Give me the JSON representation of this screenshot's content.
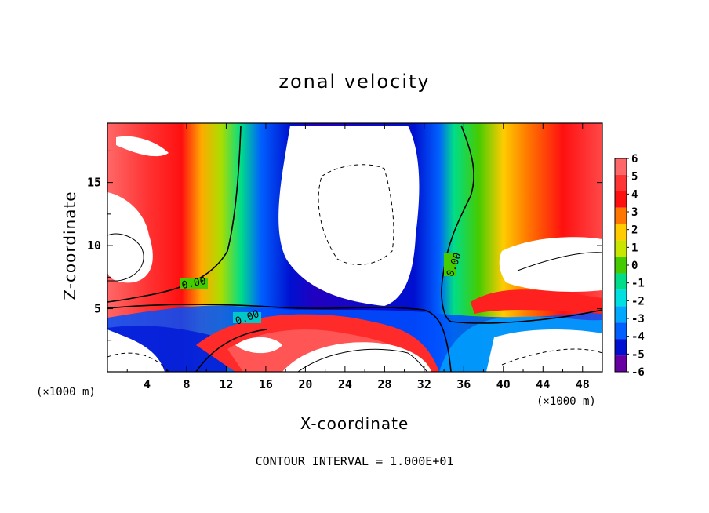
{
  "chart_data": {
    "type": "heatmap",
    "title": "zonal velocity",
    "xlabel": "X-coordinate",
    "ylabel": "Z-coordinate",
    "x_unit_left": "(×1000 m)",
    "x_unit_right": "(×1000 m)",
    "xlim": [
      0,
      50
    ],
    "ylim": [
      0,
      19.7
    ],
    "xticks": [
      "4",
      "8",
      "12",
      "16",
      "20",
      "24",
      "28",
      "32",
      "36",
      "40",
      "44",
      "48"
    ],
    "xtick_values": [
      4,
      8,
      12,
      16,
      20,
      24,
      28,
      32,
      36,
      40,
      44,
      48
    ],
    "yticks": [
      "5",
      "10",
      "15"
    ],
    "ytick_values": [
      5,
      10,
      15
    ],
    "colorbar": {
      "labels": [
        "6",
        "5",
        "4",
        "3",
        "2",
        "1",
        "0",
        "-1",
        "-2",
        "-3",
        "-4",
        "-5",
        "-6"
      ],
      "levels": [
        6,
        5,
        4,
        3,
        2,
        1,
        0,
        -1,
        -2,
        -3,
        -4,
        -5,
        -6
      ],
      "colors": [
        "#ff6868",
        "#ff3434",
        "#ff1010",
        "#ff7700",
        "#ffcc00",
        "#c8e600",
        "#44cc00",
        "#00dd88",
        "#00e0e0",
        "#00a8ff",
        "#0060ff",
        "#0010d0",
        "#6600a0"
      ]
    },
    "contour_labels": [
      "0.00",
      "0.00",
      "0.00"
    ],
    "footer": "CONTOUR INTERVAL = 1.000E+01"
  }
}
